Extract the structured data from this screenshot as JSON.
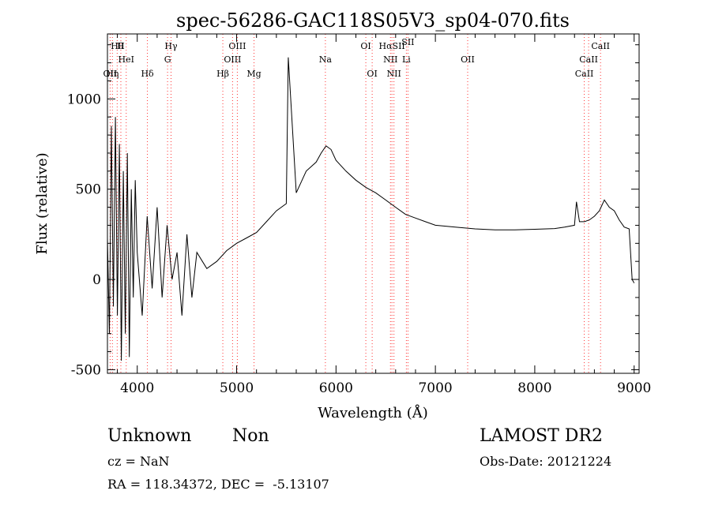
{
  "chart_data": {
    "type": "line",
    "title": "spec-56286-GAC118S05V3_sp04-070.fits",
    "xlabel": "Wavelength (Å)",
    "ylabel": "Flux (relative)",
    "xlim": [
      3700,
      9050
    ],
    "ylim": [
      -520,
      1360
    ],
    "xticks": [
      4000,
      5000,
      6000,
      7000,
      8000,
      9000
    ],
    "yticks": [
      -500,
      0,
      500,
      1000
    ],
    "grid": false,
    "series": [
      {
        "color": "#000000",
        "x": [
          3700,
          3720,
          3740,
          3760,
          3780,
          3800,
          3820,
          3840,
          3860,
          3880,
          3900,
          3920,
          3940,
          3960,
          3980,
          4000,
          4050,
          4100,
          4150,
          4200,
          4250,
          4300,
          4350,
          4400,
          4450,
          4500,
          4550,
          4600,
          4700,
          4800,
          4900,
          5000,
          5100,
          5200,
          5300,
          5400,
          5500,
          5520,
          5600,
          5700,
          5800,
          5850,
          5900,
          5950,
          6000,
          6100,
          6200,
          6300,
          6400,
          6500,
          6600,
          6700,
          6800,
          6900,
          7000,
          7200,
          7400,
          7600,
          7800,
          8000,
          8200,
          8300,
          8400,
          8420,
          8450,
          8500,
          8550,
          8600,
          8650,
          8700,
          8750,
          8800,
          8850,
          8900,
          8950,
          8980,
          9000
        ],
        "y": [
          230,
          -300,
          850,
          -150,
          900,
          -200,
          750,
          -450,
          600,
          -300,
          700,
          -430,
          500,
          -100,
          550,
          150,
          -200,
          350,
          -50,
          400,
          -100,
          300,
          0,
          150,
          -200,
          250,
          -100,
          150,
          60,
          100,
          160,
          200,
          230,
          260,
          320,
          380,
          420,
          1230,
          480,
          600,
          650,
          700,
          740,
          720,
          660,
          600,
          550,
          510,
          480,
          440,
          400,
          360,
          340,
          320,
          300,
          290,
          280,
          275,
          275,
          278,
          282,
          290,
          300,
          430,
          320,
          320,
          330,
          350,
          380,
          440,
          400,
          380,
          330,
          290,
          280,
          0,
          -20
        ]
      }
    ],
    "spectral_lines": [
      {
        "label": "Hθ",
        "x": 3798,
        "row": 1
      },
      {
        "label": "H",
        "x": 3835,
        "row": 1
      },
      {
        "label": "HeI",
        "x": 3889,
        "row": 2
      },
      {
        "label": "OII",
        "x": 3727,
        "row": 3
      },
      {
        "label": "Hη",
        "x": 3750,
        "row": 3
      },
      {
        "label": "Hδ",
        "x": 4102,
        "row": 3
      },
      {
        "label": "Hγ",
        "x": 4340,
        "row": 1
      },
      {
        "label": "G",
        "x": 4305,
        "row": 2
      },
      {
        "label": "OIII",
        "x": 5007,
        "row": 1
      },
      {
        "label": "OIII",
        "x": 4959,
        "row": 2
      },
      {
        "label": "Hβ",
        "x": 4861,
        "row": 3
      },
      {
        "label": "Mg",
        "x": 5175,
        "row": 3
      },
      {
        "label": "Na",
        "x": 5893,
        "row": 2
      },
      {
        "label": "OI",
        "x": 6300,
        "row": 1
      },
      {
        "label": "OI",
        "x": 6364,
        "row": 3
      },
      {
        "label": "HαSII",
        "x": 6563,
        "row": 1
      },
      {
        "label": "NII",
        "x": 6548,
        "row": 2
      },
      {
        "label": "NII",
        "x": 6583,
        "row": 3
      },
      {
        "label": "Li",
        "x": 6708,
        "row": 2
      },
      {
        "label": "SII",
        "x": 6724,
        "row": 0
      },
      {
        "label": "OII",
        "x": 7325,
        "row": 2
      },
      {
        "label": "CaII",
        "x": 8662,
        "row": 1
      },
      {
        "label": "CaII",
        "x": 8542,
        "row": 2
      },
      {
        "label": "CaII",
        "x": 8498,
        "row": 3
      }
    ]
  },
  "info": {
    "object_class": "Unknown",
    "subclass": "Non",
    "survey": "LAMOST DR2",
    "redshift": "cz = NaN",
    "obs_date": "Obs-Date: 20121224",
    "coords": "RA = 118.34372, DEC =  -5.13107"
  }
}
